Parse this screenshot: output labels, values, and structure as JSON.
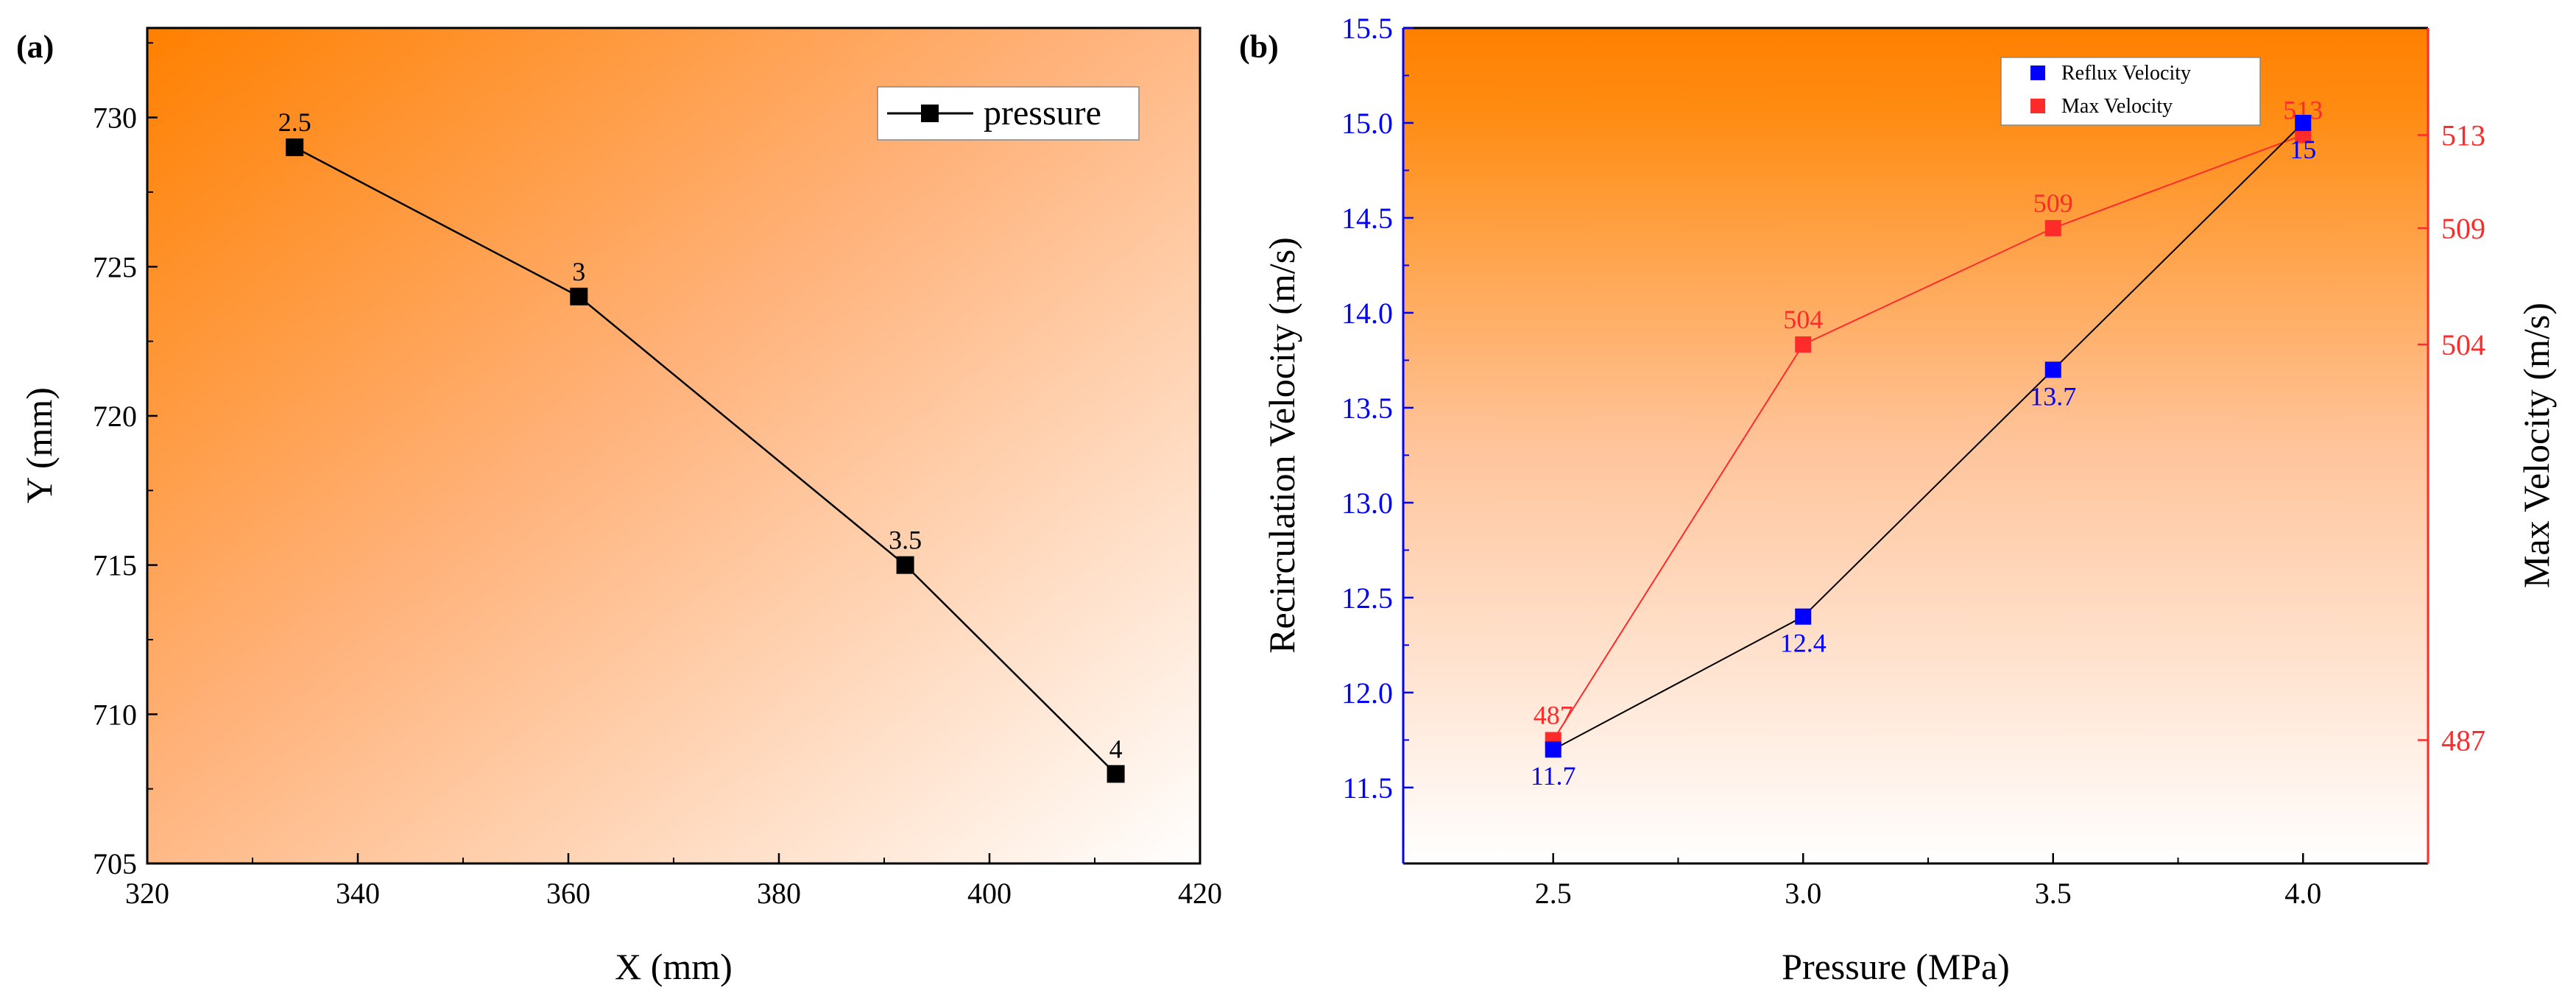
{
  "colors": {
    "orange": "#ff8000",
    "black": "#000000",
    "blue": "#0000ff",
    "red": "#ff2b2b",
    "frame": "#000000"
  },
  "chart_data": [
    {
      "type": "line",
      "panel_label": "(a)",
      "xlabel": "X (mm)",
      "ylabel": "Y (mm)",
      "xlim": [
        320,
        420
      ],
      "ylim": [
        705,
        733
      ],
      "xticks": [
        320,
        340,
        360,
        380,
        400,
        420
      ],
      "yticks": [
        705,
        710,
        715,
        720,
        725,
        730
      ],
      "legend": {
        "position": "top-right",
        "entries": [
          "pressure"
        ]
      },
      "series": [
        {
          "name": "pressure",
          "color": "#000000",
          "x": [
            334,
            361,
            392,
            412
          ],
          "y": [
            729,
            724,
            715,
            708
          ],
          "point_labels": [
            "2.5",
            "3",
            "3.5",
            "4"
          ]
        }
      ]
    },
    {
      "type": "line",
      "panel_label": "(b)",
      "xlabel": "Pressure (MPa)",
      "ylabel": "Recirculation Velocity (m/s)",
      "y2label": "Max Velocity (m/s)",
      "xlim": [
        2.2,
        4.25
      ],
      "ylim": [
        11.1,
        15.5
      ],
      "y2lim": [
        481.7,
        517.6
      ],
      "xticks": [
        2.5,
        3.0,
        3.5,
        4.0
      ],
      "xtick_labels": [
        "2.5",
        "3.0",
        "3.5",
        "4.0"
      ],
      "yticks": [
        11.5,
        12.0,
        12.5,
        13.0,
        13.5,
        14.0,
        14.5,
        15.0,
        15.5
      ],
      "ytick_labels": [
        "11.5",
        "12.0",
        "12.5",
        "13.0",
        "13.5",
        "14.0",
        "14.5",
        "15.0",
        "15.5"
      ],
      "y2ticks": [
        487,
        504,
        509,
        513
      ],
      "legend": {
        "position": "top-right",
        "entries": [
          "Reflux Velocity",
          "Max Velocity"
        ]
      },
      "series": [
        {
          "name": "Reflux Velocity",
          "axis": "left",
          "color": "#0000ff",
          "x": [
            2.5,
            3.0,
            3.5,
            4.0
          ],
          "y": [
            11.7,
            12.4,
            13.7,
            15.0
          ],
          "point_labels": [
            "11.7",
            "12.4",
            "13.7",
            "15"
          ]
        },
        {
          "name": "Max Velocity",
          "axis": "right",
          "color": "#ff2b2b",
          "x": [
            2.5,
            3.0,
            3.5,
            4.0
          ],
          "y": [
            487,
            504,
            509,
            513
          ],
          "point_labels": [
            "487",
            "504",
            "509",
            "513"
          ]
        }
      ]
    }
  ]
}
